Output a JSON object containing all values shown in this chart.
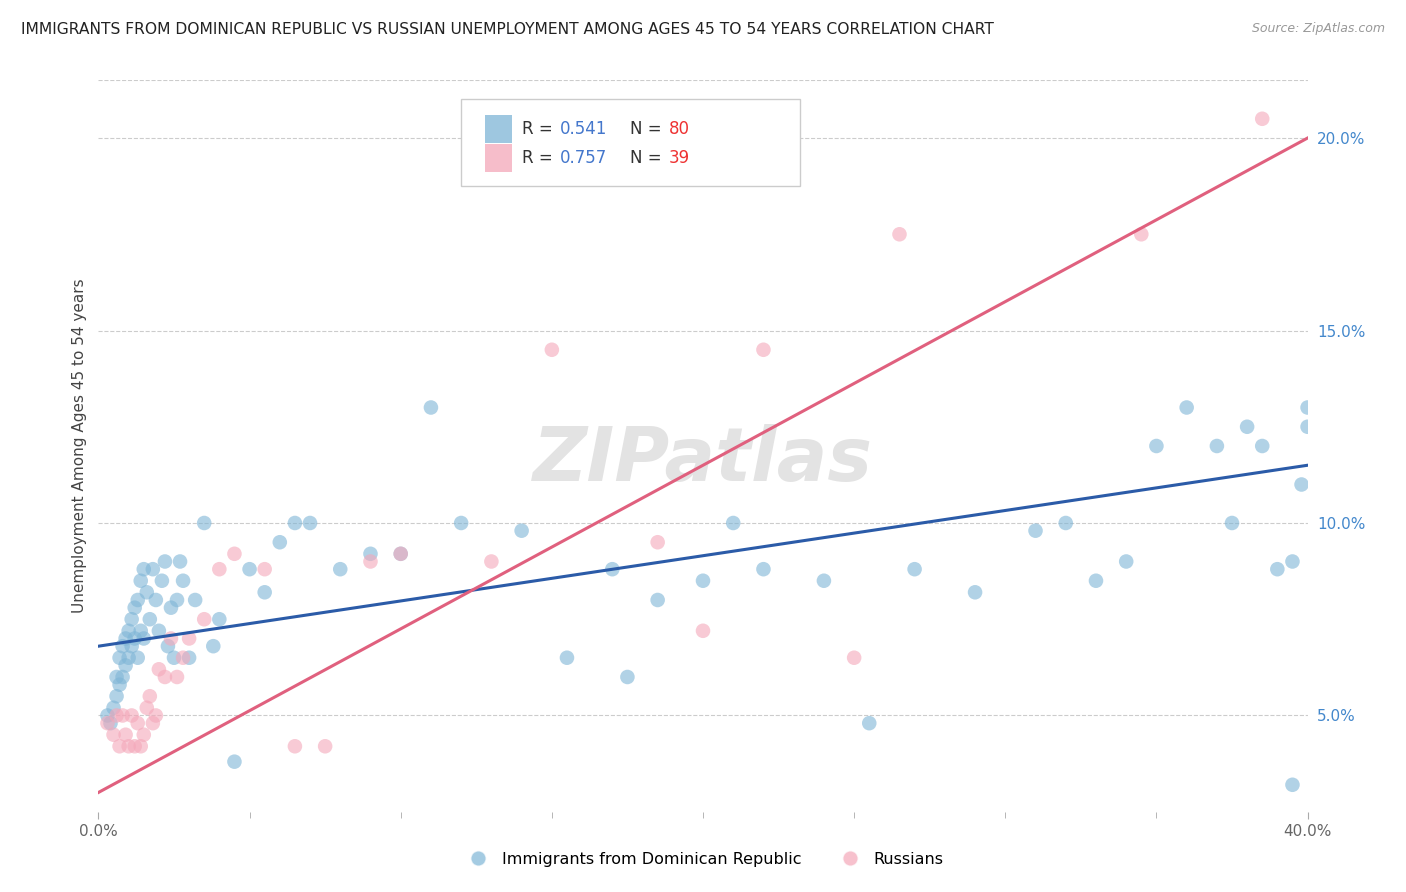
{
  "title": "IMMIGRANTS FROM DOMINICAN REPUBLIC VS RUSSIAN UNEMPLOYMENT AMONG AGES 45 TO 54 YEARS CORRELATION CHART",
  "source": "Source: ZipAtlas.com",
  "ylabel": "Unemployment Among Ages 45 to 54 years",
  "xlim": [
    0.0,
    0.4
  ],
  "ylim": [
    0.025,
    0.215
  ],
  "yticks": [
    0.05,
    0.1,
    0.15,
    0.2
  ],
  "ytick_labels": [
    "5.0%",
    "10.0%",
    "15.0%",
    "20.0%"
  ],
  "xticks_major": [
    0.0,
    0.4
  ],
  "xticks_minor": [
    0.05,
    0.1,
    0.15,
    0.2,
    0.25,
    0.3,
    0.35
  ],
  "blue_R": "0.541",
  "blue_N": "80",
  "pink_R": "0.757",
  "pink_N": "39",
  "blue_color": "#7EB5D6",
  "pink_color": "#F4A7B9",
  "blue_line_color": "#2B5BA8",
  "pink_line_color": "#E0607E",
  "R_color": "#4477CC",
  "N_color": "#EE3333",
  "legend_label_blue": "Immigrants from Dominican Republic",
  "legend_label_pink": "Russians",
  "watermark": "ZIPatlas",
  "blue_dots_x": [
    0.003,
    0.004,
    0.005,
    0.006,
    0.006,
    0.007,
    0.007,
    0.008,
    0.008,
    0.009,
    0.009,
    0.01,
    0.01,
    0.011,
    0.011,
    0.012,
    0.012,
    0.013,
    0.013,
    0.014,
    0.014,
    0.015,
    0.015,
    0.016,
    0.017,
    0.018,
    0.019,
    0.02,
    0.021,
    0.022,
    0.023,
    0.024,
    0.025,
    0.026,
    0.027,
    0.028,
    0.03,
    0.032,
    0.035,
    0.038,
    0.04,
    0.045,
    0.05,
    0.055,
    0.06,
    0.065,
    0.07,
    0.08,
    0.09,
    0.1,
    0.11,
    0.12,
    0.14,
    0.155,
    0.17,
    0.175,
    0.185,
    0.2,
    0.21,
    0.22,
    0.24,
    0.255,
    0.27,
    0.29,
    0.31,
    0.32,
    0.33,
    0.34,
    0.35,
    0.36,
    0.37,
    0.375,
    0.38,
    0.385,
    0.39,
    0.395,
    0.395,
    0.398,
    0.4,
    0.4
  ],
  "blue_dots_y": [
    0.05,
    0.048,
    0.052,
    0.055,
    0.06,
    0.058,
    0.065,
    0.06,
    0.068,
    0.063,
    0.07,
    0.065,
    0.072,
    0.068,
    0.075,
    0.07,
    0.078,
    0.065,
    0.08,
    0.072,
    0.085,
    0.07,
    0.088,
    0.082,
    0.075,
    0.088,
    0.08,
    0.072,
    0.085,
    0.09,
    0.068,
    0.078,
    0.065,
    0.08,
    0.09,
    0.085,
    0.065,
    0.08,
    0.1,
    0.068,
    0.075,
    0.038,
    0.088,
    0.082,
    0.095,
    0.1,
    0.1,
    0.088,
    0.092,
    0.092,
    0.13,
    0.1,
    0.098,
    0.065,
    0.088,
    0.06,
    0.08,
    0.085,
    0.1,
    0.088,
    0.085,
    0.048,
    0.088,
    0.082,
    0.098,
    0.1,
    0.085,
    0.09,
    0.12,
    0.13,
    0.12,
    0.1,
    0.125,
    0.12,
    0.088,
    0.032,
    0.09,
    0.11,
    0.125,
    0.13
  ],
  "pink_dots_x": [
    0.003,
    0.005,
    0.006,
    0.007,
    0.008,
    0.009,
    0.01,
    0.011,
    0.012,
    0.013,
    0.014,
    0.015,
    0.016,
    0.017,
    0.018,
    0.019,
    0.02,
    0.022,
    0.024,
    0.026,
    0.028,
    0.03,
    0.035,
    0.04,
    0.045,
    0.055,
    0.065,
    0.075,
    0.09,
    0.1,
    0.13,
    0.15,
    0.185,
    0.2,
    0.22,
    0.25,
    0.265,
    0.345,
    0.385
  ],
  "pink_dots_y": [
    0.048,
    0.045,
    0.05,
    0.042,
    0.05,
    0.045,
    0.042,
    0.05,
    0.042,
    0.048,
    0.042,
    0.045,
    0.052,
    0.055,
    0.048,
    0.05,
    0.062,
    0.06,
    0.07,
    0.06,
    0.065,
    0.07,
    0.075,
    0.088,
    0.092,
    0.088,
    0.042,
    0.042,
    0.09,
    0.092,
    0.09,
    0.145,
    0.095,
    0.072,
    0.145,
    0.065,
    0.175,
    0.175,
    0.205
  ],
  "blue_trend_x": [
    0.0,
    0.4
  ],
  "blue_trend_y": [
    0.068,
    0.115
  ],
  "pink_trend_x": [
    0.0,
    0.4
  ],
  "pink_trend_y": [
    0.03,
    0.2
  ]
}
